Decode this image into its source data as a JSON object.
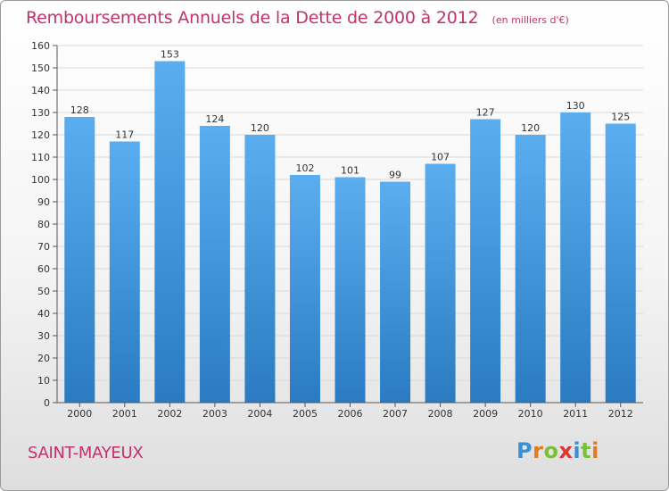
{
  "header": {
    "title": "Remboursements Annuels de la Dette de 2000 à 2012",
    "subtitle": "(en milliers d'€)"
  },
  "footer": {
    "commune": "SAINT-MAYEUX",
    "logo_text": "Proxiti",
    "logo_letters": [
      {
        "char": "P",
        "color": "#3b8fd6"
      },
      {
        "char": "r",
        "color": "#e07b1f"
      },
      {
        "char": "o",
        "color": "#7bbf3a"
      },
      {
        "char": "x",
        "color": "#e3342f"
      },
      {
        "char": "i",
        "color": "#3b8fd6"
      },
      {
        "char": "t",
        "color": "#7bbf3a"
      },
      {
        "char": "i",
        "color": "#e07b1f"
      }
    ]
  },
  "colors": {
    "title": "#c1336a",
    "bar_top": "#5aaef0",
    "bar_bottom": "#2a7bc1",
    "grid": "#d9d9d9",
    "axis": "#555555"
  },
  "chart_data": {
    "type": "bar",
    "title": "Remboursements Annuels de la Dette de 2000 à 2012",
    "subtitle": "(en milliers d'€)",
    "xlabel": "",
    "ylabel": "",
    "categories": [
      "2000",
      "2001",
      "2002",
      "2003",
      "2004",
      "2005",
      "2006",
      "2007",
      "2008",
      "2009",
      "2010",
      "2011",
      "2012"
    ],
    "values": [
      128,
      117,
      153,
      124,
      120,
      102,
      101,
      99,
      107,
      127,
      120,
      130,
      125
    ],
    "ylim": [
      0,
      160
    ],
    "yticks": [
      0,
      10,
      20,
      30,
      40,
      50,
      60,
      70,
      80,
      90,
      100,
      110,
      120,
      130,
      140,
      150,
      160
    ],
    "grid": true,
    "legend": "none",
    "data_labels": true
  }
}
